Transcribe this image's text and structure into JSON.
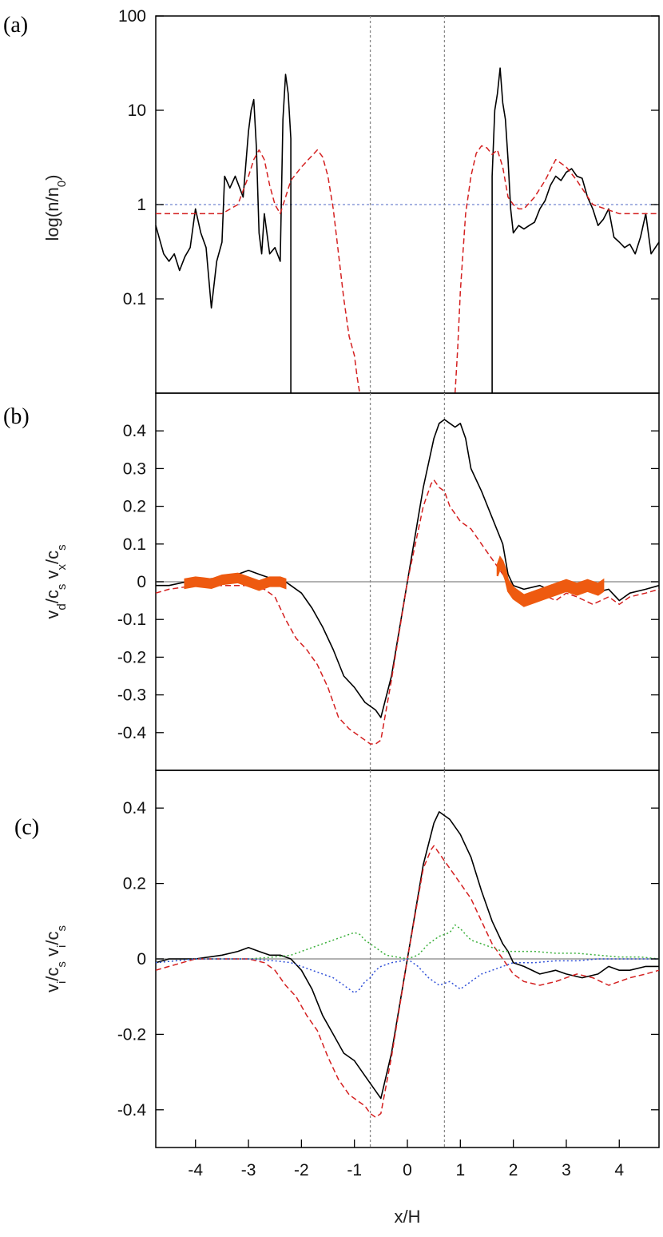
{
  "chart_data": [
    {
      "panel": "(a)",
      "type": "line",
      "ylabel": "log(n/n",
      "ylabel_sub": "0",
      "ylabel_end": ")",
      "y_scale": "log",
      "ylim": [
        0.01,
        100
      ],
      "yticks": [
        0.1,
        1,
        10,
        100
      ],
      "ytick_labels": [
        "0.1",
        "1",
        "10",
        "100"
      ],
      "xlim": [
        -4.75,
        4.75
      ],
      "reference_lines": {
        "y": [
          1
        ],
        "x": [
          -0.7,
          0.7
        ]
      },
      "series": [
        {
          "color": "#000000",
          "style": "solid",
          "x": [
            -4.75,
            -4.6,
            -4.5,
            -4.4,
            -4.3,
            -4.2,
            -4.1,
            -4.0,
            -3.9,
            -3.8,
            -3.7,
            -3.6,
            -3.5,
            -3.45,
            -3.35,
            -3.25,
            -3.1,
            -3.0,
            -2.95,
            -2.9,
            -2.85,
            -2.8,
            -2.75,
            -2.7,
            -2.6,
            -2.5,
            -2.4,
            -2.35,
            -2.3,
            -2.25,
            -2.2,
            -2.2
          ],
          "y": [
            0.6,
            0.3,
            0.25,
            0.3,
            0.2,
            0.28,
            0.35,
            0.9,
            0.5,
            0.35,
            0.08,
            0.25,
            0.4,
            2,
            1.5,
            2,
            1.2,
            6,
            10,
            13,
            4,
            0.5,
            0.3,
            0.8,
            0.3,
            0.35,
            0.25,
            8,
            24,
            15,
            5,
            0.01
          ]
        },
        {
          "color": "#000000",
          "style": "solid",
          "x": [
            1.6,
            1.6,
            1.65,
            1.7,
            1.75,
            1.8,
            1.85,
            1.9,
            1.95,
            2.0,
            2.1,
            2.2,
            2.3,
            2.4,
            2.5,
            2.6,
            2.7,
            2.8,
            2.9,
            3.0,
            3.1,
            3.2,
            3.3,
            3.4,
            3.5,
            3.6,
            3.7,
            3.8,
            3.9,
            4.0,
            4.1,
            4.2,
            4.3,
            4.4,
            4.5,
            4.6,
            4.75
          ],
          "y": [
            0.01,
            2,
            10,
            15,
            28,
            12,
            8,
            3,
            0.9,
            0.5,
            0.6,
            0.55,
            0.6,
            0.65,
            0.9,
            1.1,
            1.6,
            2,
            1.8,
            2.2,
            2.4,
            2,
            1.9,
            1.2,
            0.9,
            0.6,
            0.7,
            0.9,
            0.45,
            0.4,
            0.35,
            0.38,
            0.3,
            0.45,
            0.8,
            0.3,
            0.4
          ]
        },
        {
          "color": "#d42020",
          "style": "dashed",
          "x": [
            -4.75,
            -4.5,
            -4.0,
            -3.5,
            -3.2,
            -3.0,
            -2.9,
            -2.8,
            -2.7,
            -2.6,
            -2.5,
            -2.4,
            -2.3,
            -2.2,
            -2.0,
            -1.8,
            -1.7,
            -1.6,
            -1.5,
            -1.4,
            -1.3,
            -1.2,
            -1.1,
            -1.0,
            -0.95,
            -0.9
          ],
          "y": [
            0.8,
            0.8,
            0.8,
            0.8,
            1,
            2,
            3,
            3.8,
            3,
            1.6,
            1.0,
            0.8,
            1.2,
            1.8,
            2.5,
            3.3,
            3.8,
            3.2,
            2,
            0.9,
            0.3,
            0.1,
            0.04,
            0.025,
            0.015,
            0.01
          ]
        },
        {
          "color": "#d42020",
          "style": "dashed",
          "x": [
            0.9,
            0.95,
            1.0,
            1.1,
            1.2,
            1.3,
            1.4,
            1.5,
            1.6,
            1.7,
            1.8,
            1.9,
            2.0,
            2.1,
            2.2,
            2.4,
            2.6,
            2.8,
            3.0,
            3.2,
            3.5,
            4.0,
            4.5,
            4.75
          ],
          "y": [
            0.01,
            0.03,
            0.12,
            0.8,
            2,
            3.5,
            4.2,
            4,
            3.4,
            3.8,
            2.5,
            1.2,
            1,
            0.9,
            0.9,
            1.2,
            1.8,
            3,
            2.5,
            1.8,
            1,
            0.8,
            0.8,
            0.8
          ]
        }
      ]
    },
    {
      "panel": "(b)",
      "type": "line",
      "ylabel": "v",
      "ylabel_sub1": "d",
      "ylabel_mid": "/c",
      "ylabel_sub2": "s",
      "ylabel_mid2": " v",
      "ylabel_sub3": "x",
      "ylabel_mid3": "/c",
      "ylabel_sub4": "s",
      "ylim": [
        -0.5,
        0.5
      ],
      "yticks": [
        -0.4,
        -0.3,
        -0.2,
        -0.1,
        0,
        0.1,
        0.2,
        0.3,
        0.4
      ],
      "ytick_labels": [
        "-0.4",
        "-0.3",
        "-0.2",
        "-0.1",
        "0",
        "0.1",
        "0.2",
        "0.3",
        "0.4"
      ],
      "xlim": [
        -4.75,
        4.75
      ],
      "reference_lines": {
        "y": [
          0
        ],
        "x": [
          -0.7,
          0.7
        ]
      },
      "series": [
        {
          "color": "#000000",
          "style": "solid",
          "x": [
            -4.75,
            -4.5,
            -4.0,
            -3.5,
            -3.2,
            -3.0,
            -2.8,
            -2.6,
            -2.4,
            -2.2,
            -2.0,
            -1.8,
            -1.6,
            -1.4,
            -1.2,
            -1.0,
            -0.8,
            -0.6,
            -0.5,
            -0.3,
            0,
            0.3,
            0.5,
            0.6,
            0.7,
            0.8,
            0.9,
            1.0,
            1.1,
            1.2,
            1.4,
            1.6,
            1.8,
            1.9,
            2.0,
            2.2,
            2.5,
            2.8,
            3.0,
            3.2,
            3.5,
            3.8,
            4.0,
            4.2,
            4.5,
            4.75
          ],
          "y": [
            -0.01,
            -0.01,
            0.005,
            0.01,
            0.02,
            0.03,
            0.02,
            0.01,
            0.01,
            -0.01,
            -0.03,
            -0.07,
            -0.12,
            -0.18,
            -0.25,
            -0.28,
            -0.32,
            -0.34,
            -0.36,
            -0.25,
            0,
            0.25,
            0.38,
            0.42,
            0.43,
            0.42,
            0.41,
            0.42,
            0.38,
            0.3,
            0.24,
            0.17,
            0.1,
            0.02,
            -0.01,
            -0.02,
            -0.01,
            -0.03,
            -0.02,
            -0.01,
            -0.03,
            -0.02,
            -0.05,
            -0.03,
            -0.02,
            -0.01
          ]
        },
        {
          "color": "#d42020",
          "style": "dashed",
          "x": [
            -4.75,
            -4.5,
            -4.0,
            -3.5,
            -3.0,
            -2.7,
            -2.5,
            -2.3,
            -2.1,
            -1.9,
            -1.7,
            -1.5,
            -1.3,
            -1.1,
            -0.9,
            -0.8,
            -0.7,
            -0.6,
            -0.5,
            -0.3,
            0,
            0.3,
            0.45,
            0.5,
            0.6,
            0.7,
            0.8,
            0.9,
            1.0,
            1.2,
            1.4,
            1.6,
            1.8,
            2.0,
            2.2,
            2.5,
            2.8,
            3.0,
            3.2,
            3.5,
            3.8,
            4.0,
            4.2,
            4.5,
            4.75
          ],
          "y": [
            -0.03,
            -0.02,
            -0.01,
            -0.01,
            -0.01,
            -0.02,
            -0.04,
            -0.1,
            -0.15,
            -0.18,
            -0.22,
            -0.28,
            -0.36,
            -0.39,
            -0.41,
            -0.42,
            -0.43,
            -0.43,
            -0.42,
            -0.26,
            0,
            0.2,
            0.26,
            0.27,
            0.25,
            0.24,
            0.2,
            0.18,
            0.16,
            0.14,
            0.1,
            0.06,
            0.02,
            -0.02,
            -0.04,
            -0.03,
            -0.05,
            -0.03,
            -0.04,
            -0.06,
            -0.04,
            -0.06,
            -0.04,
            -0.03,
            -0.02
          ]
        },
        {
          "color": "#ee5a10",
          "style": "band",
          "x": [
            -4.2,
            -4.0,
            -3.7,
            -3.5,
            -3.2,
            -3.0,
            -2.8,
            -2.6,
            -2.4,
            -2.3
          ],
          "y": [
            -0.005,
            0,
            -0.005,
            0.005,
            0.01,
            0.0,
            -0.01,
            0.0,
            0.0,
            -0.005
          ],
          "band_half_width": 0.012
        },
        {
          "color": "#ee5a10",
          "style": "band",
          "x": [
            1.7,
            1.75,
            1.8,
            1.85,
            1.9,
            2.0,
            2.1,
            2.2,
            2.4,
            2.6,
            2.8,
            3.0,
            3.2,
            3.4,
            3.6,
            3.7
          ],
          "y": [
            0.03,
            0.05,
            0.04,
            0.02,
            -0.01,
            -0.03,
            -0.04,
            -0.05,
            -0.04,
            -0.03,
            -0.02,
            -0.01,
            -0.02,
            -0.01,
            -0.02,
            -0.01
          ],
          "band_half_width": 0.015
        }
      ]
    },
    {
      "panel": "(c)",
      "type": "line",
      "ylabel": "v",
      "ylabel_sub1": "i",
      "ylabel_mid": "/c",
      "ylabel_sub2": "s",
      "ylabel_mid2": " v",
      "ylabel_sub3": "i",
      "ylabel_mid3": "/c",
      "ylabel_sub4": "s",
      "xlabel": "x/H",
      "ylim": [
        -0.5,
        0.5
      ],
      "yticks": [
        -0.4,
        -0.2,
        0,
        0.2,
        0.4
      ],
      "ytick_labels": [
        "-0.4",
        "-0.2",
        "0",
        "0.2",
        "0.4"
      ],
      "xlim": [
        -4.75,
        4.75
      ],
      "xticks": [
        -4,
        -3,
        -2,
        -1,
        0,
        1,
        2,
        3,
        4
      ],
      "xtick_labels": [
        "-4",
        "-3",
        "-2",
        "-1",
        "0",
        "1",
        "2",
        "3",
        "4"
      ],
      "reference_lines": {
        "y": [
          0
        ],
        "x": [
          -0.7,
          0.7
        ]
      },
      "series": [
        {
          "color": "#000000",
          "style": "solid",
          "x": [
            -4.75,
            -4.5,
            -4.0,
            -3.5,
            -3.2,
            -3.0,
            -2.8,
            -2.6,
            -2.4,
            -2.2,
            -2.0,
            -1.8,
            -1.6,
            -1.4,
            -1.2,
            -1.0,
            -0.8,
            -0.6,
            -0.5,
            -0.3,
            0,
            0.3,
            0.5,
            0.6,
            0.7,
            0.8,
            0.9,
            1.0,
            1.1,
            1.2,
            1.4,
            1.6,
            1.8,
            1.9,
            2.0,
            2.2,
            2.5,
            2.8,
            3.0,
            3.3,
            3.6,
            3.8,
            4.0,
            4.2,
            4.5,
            4.75
          ],
          "y": [
            -0.01,
            0,
            0,
            0.01,
            0.02,
            0.03,
            0.02,
            0.01,
            0.01,
            0,
            -0.03,
            -0.08,
            -0.15,
            -0.2,
            -0.25,
            -0.27,
            -0.31,
            -0.35,
            -0.37,
            -0.25,
            0,
            0.25,
            0.36,
            0.39,
            0.38,
            0.37,
            0.35,
            0.33,
            0.3,
            0.27,
            0.18,
            0.1,
            0.04,
            0.02,
            -0.01,
            -0.02,
            -0.04,
            -0.03,
            -0.04,
            -0.05,
            -0.04,
            -0.02,
            -0.03,
            -0.03,
            -0.02,
            -0.02
          ]
        },
        {
          "color": "#d42020",
          "style": "dashed",
          "x": [
            -4.75,
            -4.5,
            -4.0,
            -3.5,
            -3.0,
            -2.7,
            -2.5,
            -2.3,
            -2.1,
            -1.9,
            -1.7,
            -1.5,
            -1.3,
            -1.1,
            -0.9,
            -0.8,
            -0.7,
            -0.6,
            -0.5,
            -0.3,
            0,
            0.3,
            0.45,
            0.5,
            0.6,
            0.7,
            0.8,
            0.9,
            1.0,
            1.2,
            1.4,
            1.6,
            1.8,
            2.0,
            2.2,
            2.5,
            2.8,
            3.0,
            3.2,
            3.5,
            3.8,
            4.0,
            4.2,
            4.5,
            4.75
          ],
          "y": [
            -0.03,
            -0.02,
            0,
            0,
            0,
            -0.01,
            -0.03,
            -0.07,
            -0.1,
            -0.15,
            -0.19,
            -0.26,
            -0.32,
            -0.36,
            -0.38,
            -0.39,
            -0.41,
            -0.42,
            -0.41,
            -0.26,
            0,
            0.24,
            0.29,
            0.3,
            0.28,
            0.26,
            0.24,
            0.22,
            0.2,
            0.16,
            0.1,
            0.04,
            0,
            -0.04,
            -0.06,
            -0.07,
            -0.06,
            -0.05,
            -0.04,
            -0.05,
            -0.07,
            -0.06,
            -0.05,
            -0.04,
            -0.03
          ]
        },
        {
          "color": "#3ab03a",
          "style": "dotted",
          "x": [
            -4.75,
            -4.0,
            -3.0,
            -2.5,
            -2.2,
            -2.0,
            -1.8,
            -1.6,
            -1.4,
            -1.2,
            -1.0,
            -0.9,
            -0.8,
            -0.7,
            -0.6,
            -0.5,
            -0.4,
            -0.2,
            0,
            0.2,
            0.4,
            0.6,
            0.8,
            0.9,
            1.0,
            1.2,
            1.4,
            1.6,
            1.8,
            2.0,
            2.4,
            2.8,
            3.2,
            3.6,
            4.0,
            4.4,
            4.75
          ],
          "y": [
            -0.01,
            0,
            0,
            0.005,
            0.01,
            0.02,
            0.03,
            0.04,
            0.05,
            0.06,
            0.07,
            0.065,
            0.05,
            0.04,
            0.03,
            0.02,
            0.01,
            0.005,
            0,
            0.01,
            0.04,
            0.06,
            0.07,
            0.09,
            0.08,
            0.05,
            0.04,
            0.03,
            0.02,
            0.02,
            0.02,
            0.015,
            0.015,
            0.01,
            0.005,
            0.005,
            0
          ]
        },
        {
          "color": "#3050d8",
          "style": "dotted",
          "x": [
            -4.75,
            -4.0,
            -3.0,
            -2.5,
            -2.2,
            -2.0,
            -1.8,
            -1.6,
            -1.4,
            -1.2,
            -1.0,
            -0.9,
            -0.8,
            -0.7,
            -0.6,
            -0.5,
            -0.3,
            -0.1,
            0,
            0.2,
            0.4,
            0.6,
            0.8,
            1.0,
            1.2,
            1.4,
            1.6,
            1.8,
            2.0,
            2.4,
            2.8,
            3.2,
            3.6,
            4.0,
            4.4,
            4.75
          ],
          "y": [
            -0.01,
            0,
            0,
            -0.005,
            -0.01,
            -0.02,
            -0.03,
            -0.04,
            -0.05,
            -0.07,
            -0.09,
            -0.08,
            -0.06,
            -0.05,
            -0.03,
            -0.02,
            -0.01,
            -0.005,
            0,
            -0.02,
            -0.05,
            -0.07,
            -0.06,
            -0.08,
            -0.06,
            -0.04,
            -0.03,
            -0.02,
            -0.01,
            -0.01,
            -0.005,
            -0.005,
            0,
            0,
            0,
            0
          ]
        }
      ]
    }
  ]
}
